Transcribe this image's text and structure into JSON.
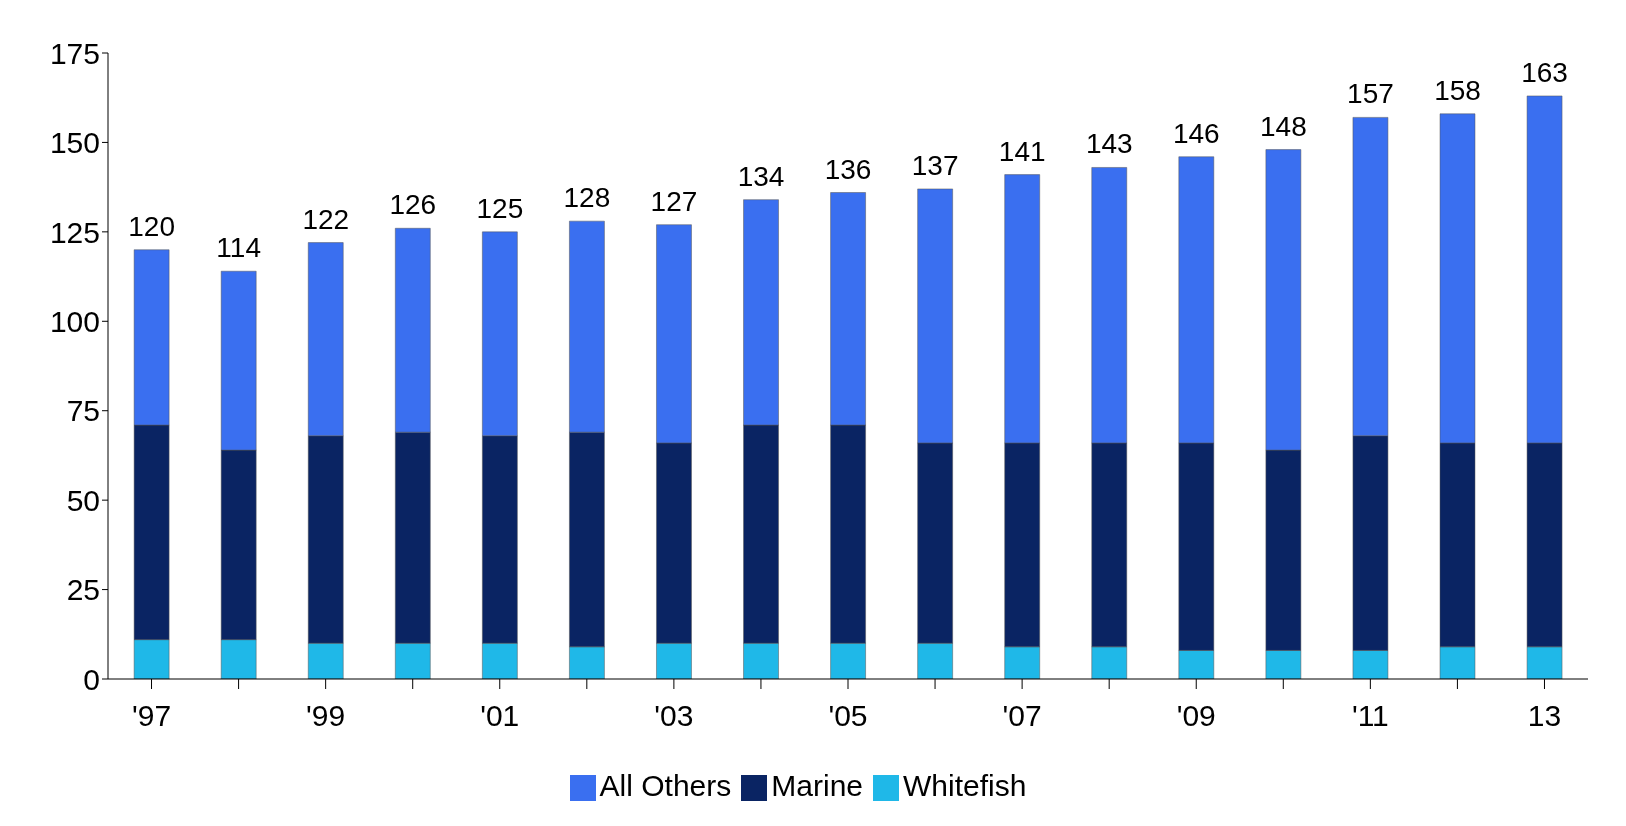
{
  "chart_data": {
    "type": "bar",
    "stacked": true,
    "categories": [
      "'97",
      null,
      "'99",
      null,
      "'01",
      null,
      "'03",
      null,
      "'05",
      null,
      "'07",
      null,
      "'09",
      null,
      "'11",
      null,
      "13"
    ],
    "series": [
      {
        "name": "Whitefish",
        "color": "#1fb8e8",
        "values": [
          11,
          11,
          10,
          10,
          10,
          9,
          10,
          10,
          10,
          10,
          9,
          9,
          8,
          8,
          8,
          9,
          9
        ]
      },
      {
        "name": "Marine",
        "color": "#0a2463",
        "values": [
          60,
          53,
          58,
          59,
          58,
          60,
          56,
          61,
          61,
          56,
          57,
          57,
          58,
          56,
          60,
          57,
          57
        ]
      },
      {
        "name": "All Others",
        "color": "#3a6ff0",
        "values": [
          49,
          50,
          54,
          57,
          57,
          59,
          61,
          63,
          65,
          71,
          75,
          77,
          80,
          84,
          89,
          92,
          97
        ]
      }
    ],
    "totals": [
      "120",
      "114",
      "122",
      "126",
      "125",
      "128",
      "127",
      "134",
      "136",
      "137",
      "141",
      "143",
      "146",
      "148",
      "157",
      "158",
      "163"
    ],
    "ylim": [
      0,
      175
    ],
    "yticks": [
      0,
      25,
      50,
      75,
      100,
      125,
      150,
      175
    ],
    "grid": false,
    "legend": "bottom"
  }
}
